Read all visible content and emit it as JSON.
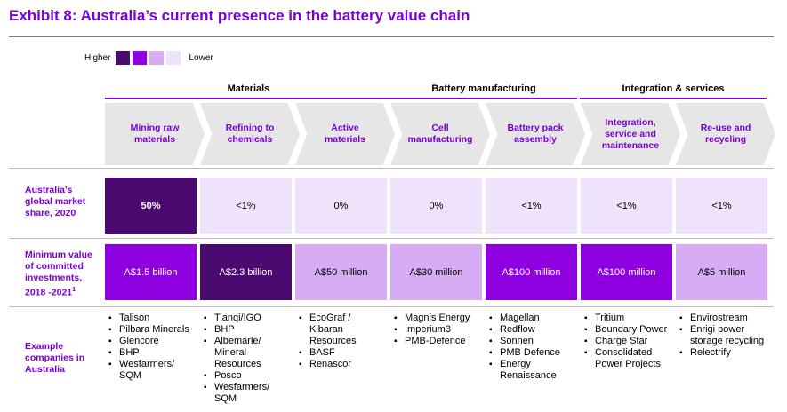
{
  "title": "Exhibit 8: Australia’s current presence in the battery value chain",
  "legend": {
    "higher": "Higher",
    "lower": "Lower",
    "colors": [
      "#4b0a70",
      "#8f00e0",
      "#d8acf4",
      "#efe2fb"
    ]
  },
  "groups": [
    "Materials",
    "Battery manufacturing",
    "Integration & services"
  ],
  "stages": [
    "Mining raw materials",
    "Refining to chemicals",
    "Active materials",
    "Cell manufacturing",
    "Battery pack assembly",
    "Integration, service and maintenance",
    "Re-use and recycling"
  ],
  "row_labels": {
    "share": "Australia’s global market share, 2020",
    "investment": "Minimum value of committed investments, 2018 -2021",
    "investment_sup": "1",
    "companies": "Example companies in Australia"
  },
  "market_share": [
    "50%",
    "<1%",
    "0%",
    "0%",
    "<1%",
    "<1%",
    "<1%"
  ],
  "investments": [
    "A$1.5 billion",
    "A$2.3 billion",
    "A$50 million",
    "A$30 million",
    "A$100 million",
    "A$100 million",
    "A$5 million"
  ],
  "companies": [
    [
      "Talison",
      "Pilbara Minerals",
      "Glencore",
      "BHP",
      "Wesfarmers/ SQM"
    ],
    [
      "Tianqi/IGO",
      "BHP",
      "Albemarle/ Mineral Resources",
      "Posco",
      "Wesfarmers/ SQM"
    ],
    [
      "EcoGraf / Kibaran Resources",
      "BASF",
      "Renascor"
    ],
    [
      "Magnis Energy",
      "Imperium3",
      "PMB-Defence"
    ],
    [
      "Magellan",
      "Redflow",
      "Sonnen",
      "PMB Defence",
      "Energy Renaissance"
    ],
    [
      "Tritium",
      "Boundary Power",
      "Charge Star",
      "Consolidated Power Projects"
    ],
    [
      "Envirostream",
      "Enrigi power storage recycling",
      "Relectrify"
    ]
  ]
}
